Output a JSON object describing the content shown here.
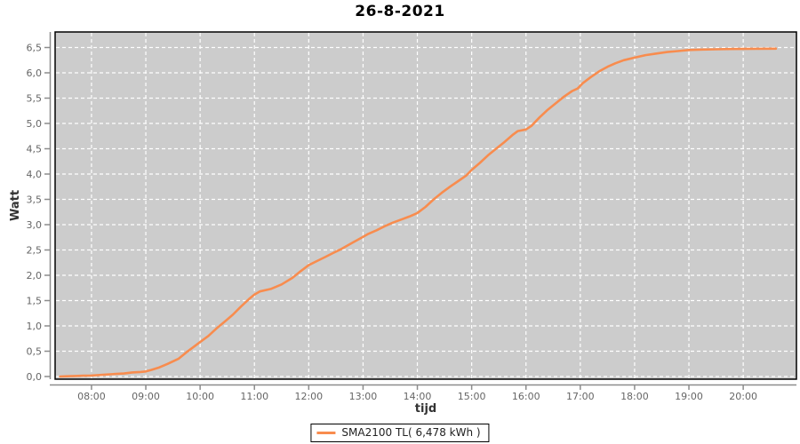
{
  "page": {
    "background": "#ffffff"
  },
  "chart_data": {
    "type": "line",
    "title": "26-8-2021",
    "xlabel": "tijd",
    "ylabel": "Watt",
    "plot_background": "#cccccc",
    "grid": {
      "visible": true,
      "style": "dashed",
      "color": "#ffffff"
    },
    "border_color": "#000000",
    "axis_color": "#8c8c8c",
    "tick_label_color": "#666666",
    "axis_label_color": "#333333",
    "x_axis": {
      "label": "tijd",
      "tick_labels": [
        "08:00",
        "09:00",
        "10:00",
        "11:00",
        "12:00",
        "13:00",
        "14:00",
        "15:00",
        "16:00",
        "17:00",
        "18:00",
        "19:00",
        "20:00"
      ],
      "tick_hours": [
        8,
        9,
        10,
        11,
        12,
        13,
        14,
        15,
        16,
        17,
        18,
        19,
        20
      ],
      "range_hours": [
        7.33,
        20.98
      ]
    },
    "y_axis": {
      "label": "Watt",
      "tick_labels": [
        "0,0",
        "0,5",
        "1,0",
        "1,5",
        "2,0",
        "2,5",
        "3,0",
        "3,5",
        "4,0",
        "4,5",
        "5,0",
        "5,5",
        "6,0",
        "6,5"
      ],
      "tick_values": [
        0,
        0.5,
        1,
        1.5,
        2,
        2.5,
        3,
        3.5,
        4,
        4.5,
        5,
        5.5,
        6,
        6.5
      ],
      "range": [
        0,
        6.85
      ]
    },
    "legend": {
      "position": "bottom-center",
      "entries": [
        {
          "label": "SMA2100 TL( 6,478 kWh )",
          "color": "#f88c4e"
        }
      ]
    },
    "series": [
      {
        "name": "SMA2100 TL( 6,478 kWh )",
        "color": "#f88c4e",
        "total_kwh_label": "6,478",
        "points": [
          [
            7.42,
            0.0
          ],
          [
            7.55,
            0.005
          ],
          [
            7.7,
            0.01
          ],
          [
            7.85,
            0.015
          ],
          [
            8.0,
            0.02
          ],
          [
            8.15,
            0.03
          ],
          [
            8.3,
            0.04
          ],
          [
            8.45,
            0.05
          ],
          [
            8.6,
            0.06
          ],
          [
            8.75,
            0.08
          ],
          [
            8.9,
            0.09
          ],
          [
            9.0,
            0.1
          ],
          [
            9.1,
            0.13
          ],
          [
            9.25,
            0.18
          ],
          [
            9.4,
            0.25
          ],
          [
            9.5,
            0.3
          ],
          [
            9.6,
            0.35
          ],
          [
            9.75,
            0.48
          ],
          [
            9.9,
            0.6
          ],
          [
            10.0,
            0.68
          ],
          [
            10.15,
            0.8
          ],
          [
            10.3,
            0.95
          ],
          [
            10.45,
            1.08
          ],
          [
            10.6,
            1.22
          ],
          [
            10.75,
            1.38
          ],
          [
            10.9,
            1.53
          ],
          [
            11.0,
            1.62
          ],
          [
            11.1,
            1.68
          ],
          [
            11.3,
            1.73
          ],
          [
            11.5,
            1.82
          ],
          [
            11.7,
            1.95
          ],
          [
            11.85,
            2.08
          ],
          [
            12.0,
            2.2
          ],
          [
            12.15,
            2.28
          ],
          [
            12.3,
            2.36
          ],
          [
            12.45,
            2.44
          ],
          [
            12.6,
            2.52
          ],
          [
            12.8,
            2.64
          ],
          [
            13.0,
            2.76
          ],
          [
            13.1,
            2.82
          ],
          [
            13.25,
            2.89
          ],
          [
            13.4,
            2.97
          ],
          [
            13.55,
            3.04
          ],
          [
            13.7,
            3.1
          ],
          [
            13.85,
            3.16
          ],
          [
            14.0,
            3.23
          ],
          [
            14.15,
            3.35
          ],
          [
            14.3,
            3.5
          ],
          [
            14.45,
            3.63
          ],
          [
            14.6,
            3.75
          ],
          [
            14.75,
            3.86
          ],
          [
            14.9,
            3.97
          ],
          [
            15.0,
            4.08
          ],
          [
            15.15,
            4.22
          ],
          [
            15.3,
            4.37
          ],
          [
            15.45,
            4.5
          ],
          [
            15.6,
            4.63
          ],
          [
            15.75,
            4.77
          ],
          [
            15.85,
            4.85
          ],
          [
            16.0,
            4.88
          ],
          [
            16.1,
            4.95
          ],
          [
            16.25,
            5.12
          ],
          [
            16.4,
            5.27
          ],
          [
            16.55,
            5.4
          ],
          [
            16.7,
            5.53
          ],
          [
            16.85,
            5.64
          ],
          [
            16.95,
            5.69
          ],
          [
            17.05,
            5.8
          ],
          [
            17.2,
            5.92
          ],
          [
            17.35,
            6.03
          ],
          [
            17.5,
            6.12
          ],
          [
            17.65,
            6.19
          ],
          [
            17.8,
            6.25
          ],
          [
            18.0,
            6.3
          ],
          [
            18.2,
            6.35
          ],
          [
            18.4,
            6.38
          ],
          [
            18.6,
            6.41
          ],
          [
            18.8,
            6.43
          ],
          [
            19.0,
            6.45
          ],
          [
            19.25,
            6.46
          ],
          [
            19.5,
            6.465
          ],
          [
            19.75,
            6.47
          ],
          [
            20.0,
            6.472
          ],
          [
            20.25,
            6.475
          ],
          [
            20.6,
            6.478
          ]
        ]
      }
    ]
  }
}
